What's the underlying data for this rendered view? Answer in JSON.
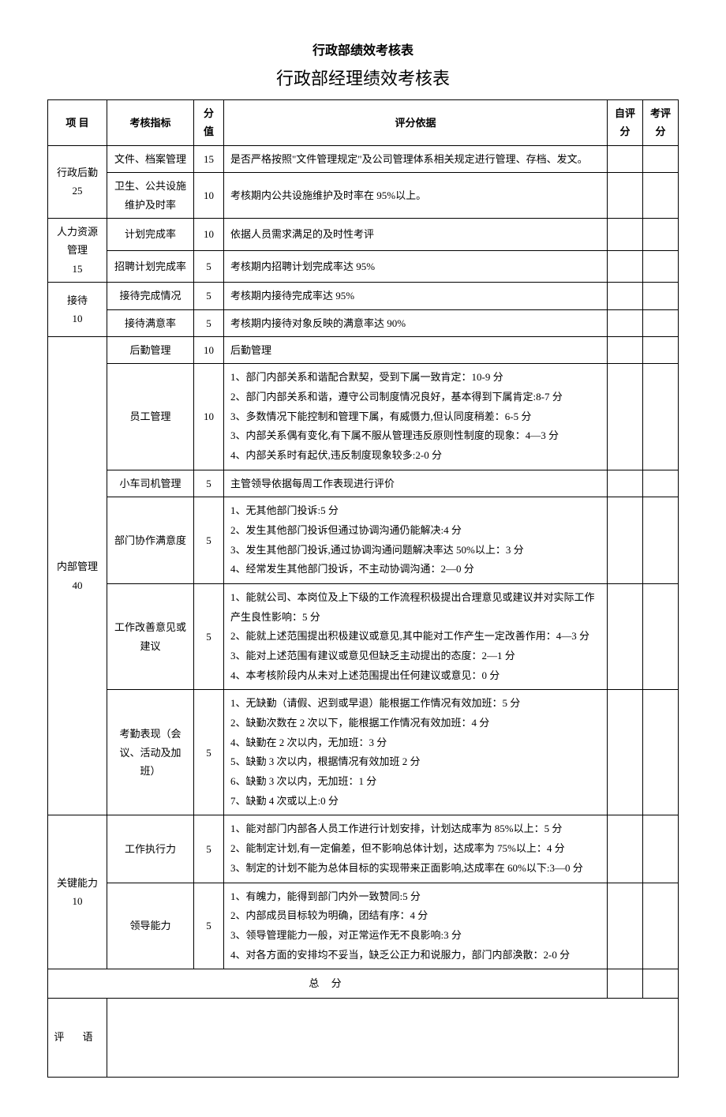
{
  "titles": {
    "main": "行政部绩效考核表",
    "sub": "行政部经理绩效考核表"
  },
  "headers": {
    "project": "项 目",
    "indicator": "考核指标",
    "score": "分值",
    "criteria": "评分依据",
    "self": "自评分",
    "eval": "考评分"
  },
  "categories": [
    {
      "name": "行政后勤 25",
      "rows": [
        {
          "indicator": "文件、档案管理",
          "score": "15",
          "criteria": "是否严格按照\"文件管理规定\"及公司管理体系相关规定进行管理、存档、发文。"
        },
        {
          "indicator": "卫生、公共设施维护及时率",
          "score": "10",
          "criteria": "考核期内公共设施维护及时率在 95%以上。"
        }
      ]
    },
    {
      "name": "人力资源管理 15",
      "rows": [
        {
          "indicator": "计划完成率",
          "score": "10",
          "criteria": "依据人员需求满足的及时性考评"
        },
        {
          "indicator": "招聘计划完成率",
          "score": "5",
          "criteria": "考核期内招聘计划完成率达 95%"
        }
      ]
    },
    {
      "name": "接待 10",
      "rows": [
        {
          "indicator": "接待完成情况",
          "score": "5",
          "criteria": "考核期内接待完成率达 95%"
        },
        {
          "indicator": "接待满意率",
          "score": "5",
          "criteria": "考核期内接待对象反映的满意率达 90%"
        }
      ]
    },
    {
      "name": "内部管理 40",
      "rows": [
        {
          "indicator": "后勤管理",
          "score": "10",
          "criteria": "后勤管理"
        },
        {
          "indicator": "员工管理",
          "score": "10",
          "criteria": "1、部门内部关系和谐配合默契，受到下属一致肯定：10-9 分\n2、部门内部关系和谐，遵守公司制度情况良好，基本得到下属肯定:8-7 分\n3、多数情况下能控制和管理下属，有威慑力,但认同度稍差：6-5 分\n3、内部关系偶有变化,有下属不服从管理违反原则性制度的现象：4—3 分\n4、内部关系时有起伏,违反制度现象较多:2-0 分"
        },
        {
          "indicator": "小车司机管理",
          "score": "5",
          "criteria": "主管领导依据每周工作表现进行评价"
        },
        {
          "indicator": "部门协作满意度",
          "score": "5",
          "criteria": "1、无其他部门投诉:5 分\n2、发生其他部门投诉但通过协调沟通仍能解决:4 分\n3、发生其他部门投诉,通过协调沟通问题解决率达 50%以上：3 分\n4、经常发生其他部门投诉，不主动协调沟通：2—0 分"
        },
        {
          "indicator": "工作改善意见或建议",
          "score": "5",
          "criteria": "1、能就公司、本岗位及上下级的工作流程积极提出合理意见或建议并对实际工作产生良性影响：5 分\n2、能就上述范围提出积极建议或意见,其中能对工作产生一定改善作用：4—3 分\n3、能对上述范围有建议或意见但缺乏主动提出的态度：2—1 分\n4、本考核阶段内从未对上述范围提出任何建议或意见：0 分"
        },
        {
          "indicator": "考勤表现（会议、活动及加班）",
          "score": "5",
          "criteria": "1、无缺勤（请假、迟到或早退）能根据工作情况有效加班：5 分\n2、缺勤次数在 2 次以下，能根据工作情况有效加班：4 分\n4、缺勤在 2 次以内，无加班：3 分\n5、缺勤 3 次以内，根据情况有效加班 2 分\n6、缺勤 3 次以内，无加班：1 分\n7、缺勤 4 次或以上:0 分"
        }
      ]
    },
    {
      "name": "关键能力 10",
      "rows": [
        {
          "indicator": "工作执行力",
          "score": "5",
          "criteria": "1、能对部门内部各人员工作进行计划安排，计划达成率为 85%以上：5 分\n2、能制定计划,有一定偏差，但不影响总体计划，达成率为 75%以上：4 分\n3、制定的计划不能为总体目标的实现带来正面影响,达成率在 60%以下:3—0 分"
        },
        {
          "indicator": "领导能力",
          "score": "5",
          "criteria": "1、有魄力，能得到部门内外一致赞同:5 分\n2、内部成员目标较为明确，团结有序：4 分\n3、领导管理能力一般，对正常运作无不良影响:3 分\n4、对各方面的安排均不妥当，缺乏公正力和说服力，部门内部涣散：2-0 分"
        }
      ]
    }
  ],
  "footer": {
    "total": "总  分",
    "comment": "评  语"
  }
}
